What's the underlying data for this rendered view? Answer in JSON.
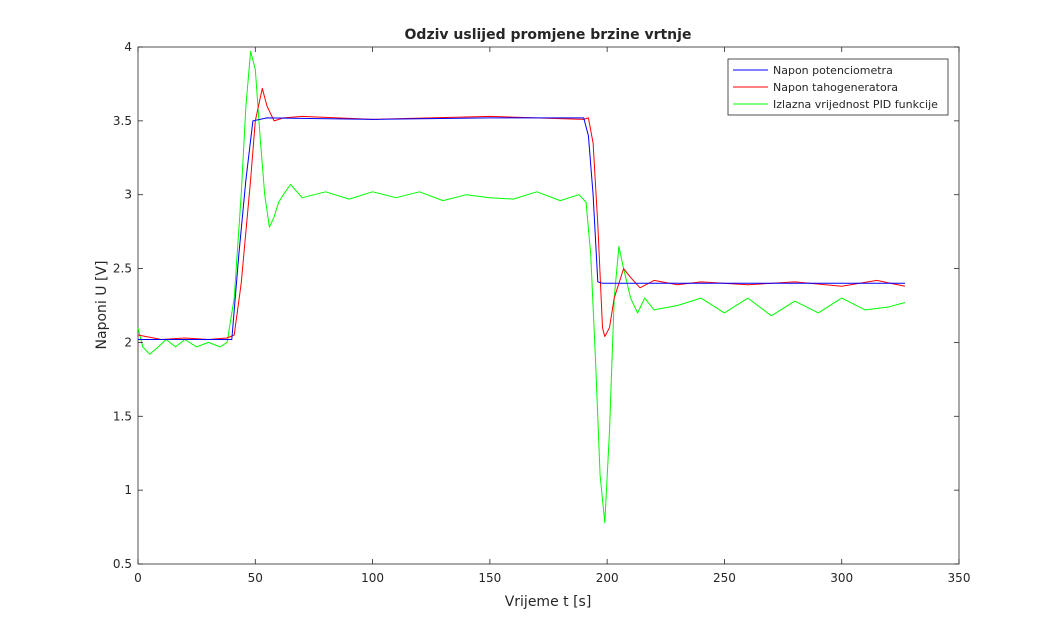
{
  "chart_data": {
    "type": "line",
    "title": "Odziv uslijed promjene brzine vrtnje",
    "xlabel": "Vrijeme t [s]",
    "ylabel": "Naponi U [V]",
    "xlim": [
      0,
      350
    ],
    "ylim": [
      0.5,
      4
    ],
    "xticks": [
      "0",
      "50",
      "100",
      "150",
      "200",
      "250",
      "300",
      "350"
    ],
    "yticks": [
      "0.5",
      "1",
      "1.5",
      "2",
      "2.5",
      "3",
      "3.5",
      "4"
    ],
    "grid": false,
    "legend_position": "top-right",
    "series": [
      {
        "name": "Napon potenciometra",
        "color": "#0000ff",
        "points": [
          [
            0,
            2.02
          ],
          [
            40,
            2.02
          ],
          [
            43,
            2.6
          ],
          [
            46,
            3.1
          ],
          [
            49,
            3.5
          ],
          [
            55,
            3.52
          ],
          [
            100,
            3.51
          ],
          [
            150,
            3.52
          ],
          [
            190,
            3.52
          ],
          [
            192,
            3.4
          ],
          [
            194,
            3.0
          ],
          [
            196,
            2.41
          ],
          [
            198,
            2.4
          ],
          [
            250,
            2.4
          ],
          [
            300,
            2.4
          ],
          [
            327,
            2.4
          ]
        ]
      },
      {
        "name": "Napon tahogeneratora",
        "color": "#ff0000",
        "points": [
          [
            0,
            2.05
          ],
          [
            10,
            2.02
          ],
          [
            20,
            2.03
          ],
          [
            30,
            2.02
          ],
          [
            38,
            2.03
          ],
          [
            41,
            2.05
          ],
          [
            44,
            2.4
          ],
          [
            48,
            3.1
          ],
          [
            50,
            3.5
          ],
          [
            53,
            3.72
          ],
          [
            55,
            3.6
          ],
          [
            58,
            3.5
          ],
          [
            62,
            3.52
          ],
          [
            70,
            3.53
          ],
          [
            100,
            3.51
          ],
          [
            150,
            3.53
          ],
          [
            190,
            3.51
          ],
          [
            192,
            3.52
          ],
          [
            194,
            3.35
          ],
          [
            196,
            2.8
          ],
          [
            198,
            2.1
          ],
          [
            199,
            2.04
          ],
          [
            201,
            2.1
          ],
          [
            203,
            2.3
          ],
          [
            207,
            2.5
          ],
          [
            210,
            2.44
          ],
          [
            214,
            2.37
          ],
          [
            220,
            2.42
          ],
          [
            230,
            2.39
          ],
          [
            240,
            2.41
          ],
          [
            260,
            2.39
          ],
          [
            280,
            2.41
          ],
          [
            300,
            2.38
          ],
          [
            315,
            2.42
          ],
          [
            327,
            2.38
          ]
        ]
      },
      {
        "name": "Izlazna vrijednost PID funkcije",
        "color": "#00ff00",
        "points": [
          [
            0,
            2.1
          ],
          [
            2,
            1.97
          ],
          [
            5,
            1.92
          ],
          [
            8,
            1.96
          ],
          [
            12,
            2.02
          ],
          [
            16,
            1.97
          ],
          [
            20,
            2.02
          ],
          [
            25,
            1.97
          ],
          [
            30,
            2.0
          ],
          [
            35,
            1.97
          ],
          [
            38,
            2.0
          ],
          [
            41,
            2.3
          ],
          [
            44,
            3.0
          ],
          [
            46,
            3.6
          ],
          [
            48,
            3.97
          ],
          [
            50,
            3.85
          ],
          [
            52,
            3.4
          ],
          [
            54,
            3.0
          ],
          [
            56,
            2.78
          ],
          [
            58,
            2.85
          ],
          [
            60,
            2.95
          ],
          [
            62,
            3.0
          ],
          [
            65,
            3.07
          ],
          [
            70,
            2.98
          ],
          [
            80,
            3.02
          ],
          [
            90,
            2.97
          ],
          [
            100,
            3.02
          ],
          [
            110,
            2.98
          ],
          [
            120,
            3.02
          ],
          [
            130,
            2.96
          ],
          [
            140,
            3.0
          ],
          [
            150,
            2.98
          ],
          [
            160,
            2.97
          ],
          [
            170,
            3.02
          ],
          [
            180,
            2.96
          ],
          [
            188,
            3.0
          ],
          [
            191,
            2.95
          ],
          [
            193,
            2.6
          ],
          [
            195,
            1.9
          ],
          [
            197,
            1.1
          ],
          [
            199,
            0.78
          ],
          [
            201,
            1.4
          ],
          [
            203,
            2.3
          ],
          [
            205,
            2.65
          ],
          [
            207,
            2.5
          ],
          [
            210,
            2.3
          ],
          [
            213,
            2.2
          ],
          [
            216,
            2.3
          ],
          [
            220,
            2.22
          ],
          [
            230,
            2.25
          ],
          [
            240,
            2.3
          ],
          [
            250,
            2.2
          ],
          [
            260,
            2.3
          ],
          [
            270,
            2.18
          ],
          [
            280,
            2.28
          ],
          [
            290,
            2.2
          ],
          [
            300,
            2.3
          ],
          [
            310,
            2.22
          ],
          [
            320,
            2.24
          ],
          [
            327,
            2.27
          ]
        ]
      }
    ]
  }
}
